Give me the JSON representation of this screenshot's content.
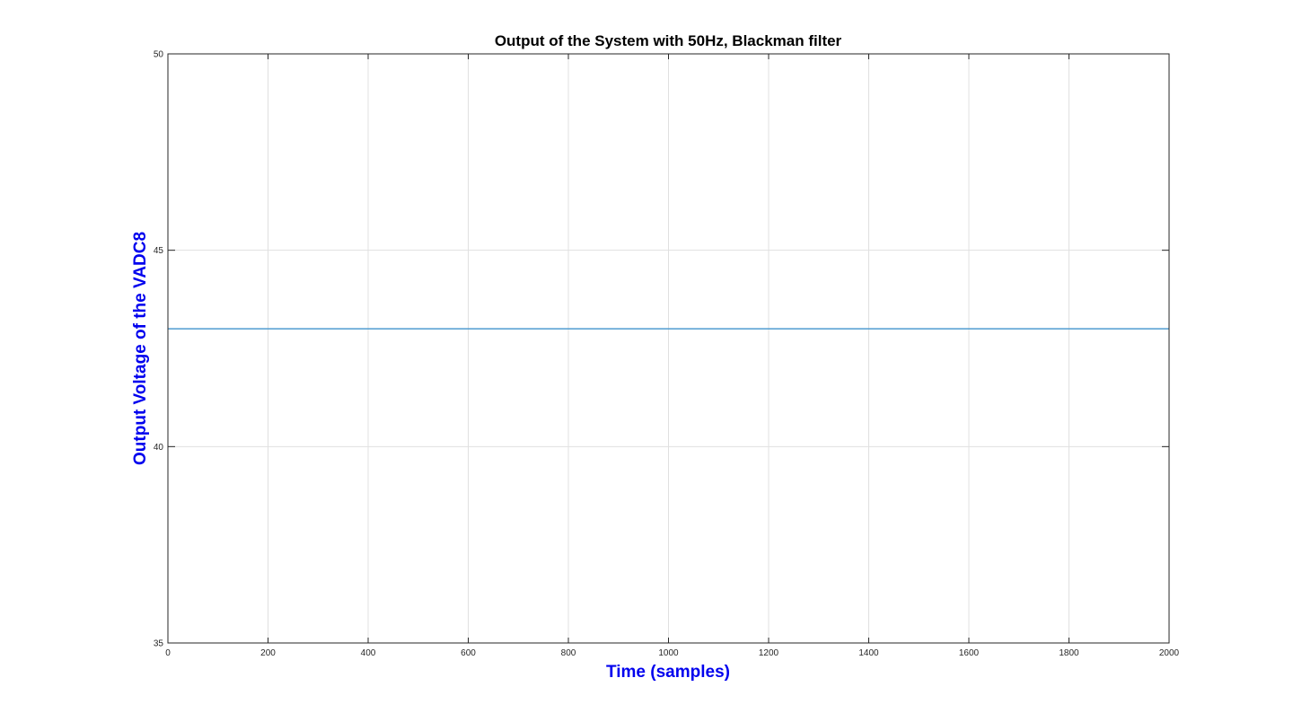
{
  "chart_data": {
    "type": "line",
    "title": "Output of the System with 50Hz, Blackman filter",
    "xlabel": "Time (samples)",
    "ylabel": "Output Voltage of the VADC8",
    "xlim": [
      0,
      2000
    ],
    "ylim": [
      35,
      50
    ],
    "x_ticks": [
      "0",
      "200",
      "400",
      "600",
      "800",
      "1000",
      "1200",
      "1400",
      "1600",
      "1800",
      "2000"
    ],
    "y_ticks": [
      "35",
      "40",
      "45",
      "50"
    ],
    "grid": true,
    "series": [
      {
        "x": [
          0,
          2000
        ],
        "y": [
          43,
          43
        ],
        "color": "#4F9BD0"
      }
    ],
    "colors": {
      "axis_label": "#0000EE",
      "title": "#000000",
      "grid": "#E0E0E0",
      "axes": "#262626"
    }
  }
}
